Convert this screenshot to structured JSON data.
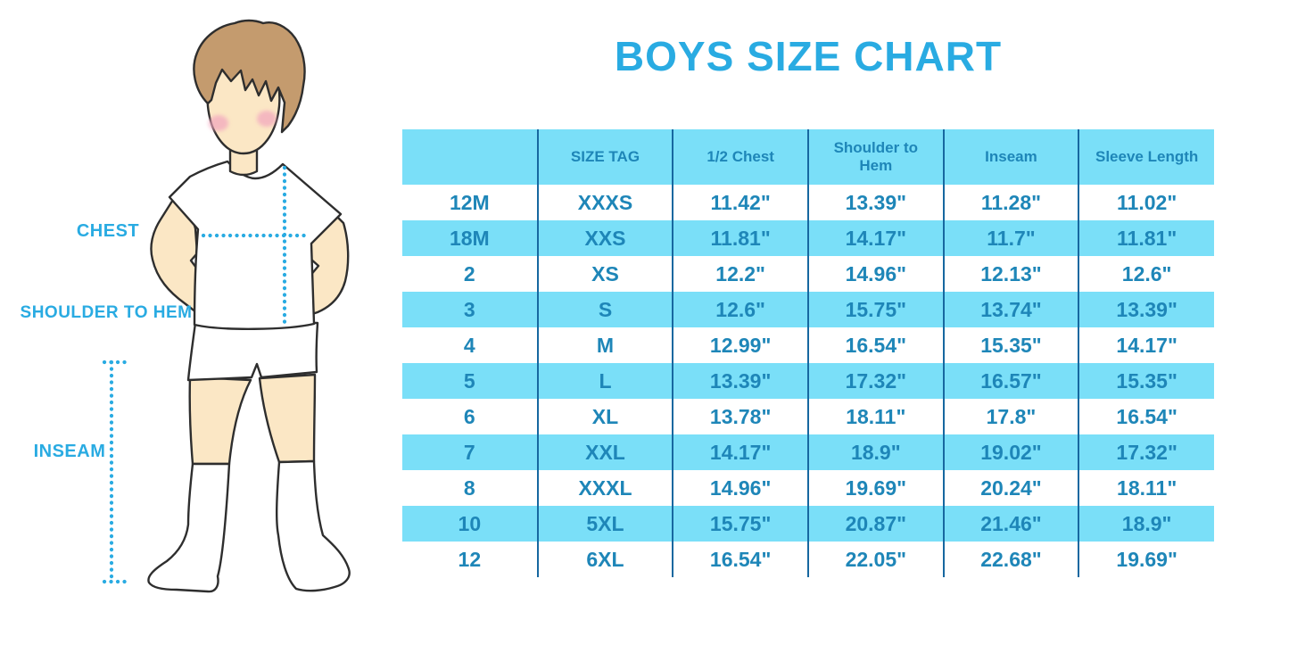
{
  "title": "BOYS SIZE CHART",
  "figure": {
    "labels": {
      "chest": "CHEST",
      "shoulder_to_hem": "SHOULDER TO HEM",
      "inseam": "INSEAM"
    }
  },
  "colors": {
    "accent_blue": "#29ABE2",
    "table_fill_cyan": "#7ADFF8",
    "table_text_blue": "#1E86B8",
    "table_divider_blue": "#1768A0",
    "outline_dark": "#2E2E2E",
    "skin": "#FBE7C5",
    "hair_brown": "#C49B6E",
    "cheek_pink": "#F2A6BE"
  },
  "chart_data": {
    "type": "table",
    "title": "BOYS SIZE CHART",
    "units": "inches",
    "columns": [
      "",
      "SIZE TAG",
      "1/2 Chest",
      "Shoulder to Hem",
      "Inseam",
      "Sleeve Length"
    ],
    "rows": [
      [
        "12M",
        "XXXS",
        "11.42\"",
        "13.39\"",
        "11.28\"",
        "11.02\""
      ],
      [
        "18M",
        "XXS",
        "11.81\"",
        "14.17\"",
        "11.7\"",
        "11.81\""
      ],
      [
        "2",
        "XS",
        "12.2\"",
        "14.96\"",
        "12.13\"",
        "12.6\""
      ],
      [
        "3",
        "S",
        "12.6\"",
        "15.75\"",
        "13.74\"",
        "13.39\""
      ],
      [
        "4",
        "M",
        "12.99\"",
        "16.54\"",
        "15.35\"",
        "14.17\""
      ],
      [
        "5",
        "L",
        "13.39\"",
        "17.32\"",
        "16.57\"",
        "15.35\""
      ],
      [
        "6",
        "XL",
        "13.78\"",
        "18.11\"",
        "17.8\"",
        "16.54\""
      ],
      [
        "7",
        "XXL",
        "14.17\"",
        "18.9\"",
        "19.02\"",
        "17.32\""
      ],
      [
        "8",
        "XXXL",
        "14.96\"",
        "19.69\"",
        "20.24\"",
        "18.11\""
      ],
      [
        "10",
        "5XL",
        "15.75\"",
        "20.87\"",
        "21.46\"",
        "18.9\""
      ],
      [
        "12",
        "6XL",
        "16.54\"",
        "22.05\"",
        "22.68\"",
        "19.69\""
      ]
    ],
    "layout": {
      "header_fill": "light-cyan",
      "row_alternation": [
        "white",
        "light-cyan"
      ],
      "column_dividers": true,
      "outer_border": false
    }
  }
}
